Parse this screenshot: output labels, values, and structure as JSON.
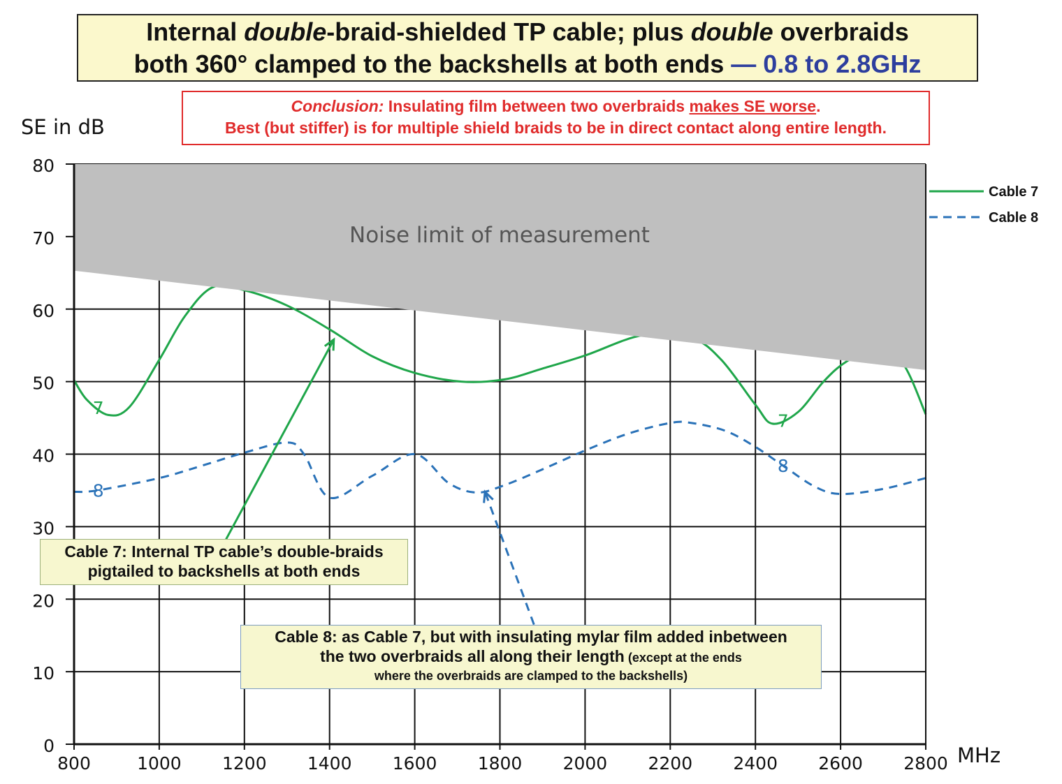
{
  "title": {
    "line1_a": "Internal ",
    "line1_b": "double",
    "line1_c": "-braid-shielded  TP cable; plus ",
    "line1_d": "double",
    "line1_e": "  overbraids",
    "line2_a": "both 360° clamped to the backshells at both ends ",
    "line2_b": "— 0.8 to 2.8GHz"
  },
  "conclusion": {
    "label": "Conclusion:",
    "text1": " Insulating film between two overbraids ",
    "text1_u": "makes SE worse",
    "text1_end": ".",
    "text2": "Best (but stiffer) is for multiple shield braids to be in direct contact along entire length."
  },
  "notes": {
    "cable7_line1": "Cable 7: Internal TP cable’s double-braids",
    "cable7_line2": "pigtailed to backshells at both ends",
    "cable8_line1": "Cable 8: as Cable 7, but with insulating mylar film added inbetween",
    "cable8_line2": "the two overbraids all along their length",
    "cable8_line2_small": "  (except at the ends",
    "cable8_line3": "where the overbraids are clamped to the backshells)"
  },
  "colors": {
    "cable7": "#1fa64a",
    "cable8": "#2a72b8",
    "noise": "#bfbfbf",
    "conclusion": "#e02b2b",
    "title_accent": "#2d3e9e"
  },
  "chart_data": {
    "type": "line",
    "title": "Internal double-braid-shielded TP cable; plus double overbraids both 360° clamped to the backshells at both ends — 0.8 to 2.8GHz",
    "xlabel": "MHz",
    "ylabel": "SE in dB",
    "xlim": [
      800,
      2800
    ],
    "ylim": [
      0,
      80
    ],
    "xticks": [
      "800",
      "1000",
      "1200",
      "1400",
      "1600",
      "1800",
      "2000",
      "2200",
      "2400",
      "2600",
      "2800"
    ],
    "yticks": [
      "0",
      "10",
      "20",
      "30",
      "40",
      "50",
      "60",
      "70",
      "80"
    ],
    "grid": true,
    "legend_position": "top-right",
    "noise_limit": {
      "label": "Noise limit of measurement",
      "x": [
        800,
        2800
      ],
      "y": [
        65.3,
        51.6
      ]
    },
    "series": [
      {
        "name": "Cable 7",
        "marker_label": "7",
        "style": "solid",
        "x": [
          800,
          830,
          880,
          930,
          1000,
          1060,
          1125,
          1200,
          1300,
          1400,
          1500,
          1600,
          1710,
          1810,
          1900,
          2000,
          2135,
          2250,
          2320,
          2400,
          2440,
          2500,
          2560,
          2612,
          2680,
          2745,
          2800
        ],
        "y": [
          50.2,
          47.5,
          45.4,
          46.5,
          53,
          59,
          63,
          62.6,
          60.5,
          57.2,
          53.5,
          51.2,
          50,
          50.3,
          51.8,
          53.6,
          56.4,
          56,
          53,
          46.8,
          44.2,
          45.8,
          50,
          52.7,
          54.5,
          52.6,
          45.5
        ],
        "labels_at": [
          {
            "x": 857,
            "y": 46.4
          },
          {
            "x": 2465,
            "y": 44.6
          }
        ]
      },
      {
        "name": "Cable 8",
        "marker_label": "8",
        "style": "dashed",
        "x": [
          800,
          855,
          1000,
          1100,
          1200,
          1300,
          1340,
          1400,
          1500,
          1600,
          1680,
          1745,
          1810,
          1900,
          2000,
          2100,
          2200,
          2250,
          2330,
          2400,
          2470,
          2540,
          2600,
          2700,
          2800
        ],
        "y": [
          34.8,
          35,
          36.7,
          38.4,
          40.2,
          41.6,
          40,
          34,
          37,
          40,
          36,
          34.7,
          35.7,
          37.9,
          40.5,
          42.8,
          44.3,
          44.3,
          43.2,
          41,
          38.2,
          35.5,
          34.5,
          35.2,
          36.7
        ],
        "labels_at": [
          {
            "x": 857,
            "y": 35
          },
          {
            "x": 2465,
            "y": 38.4
          }
        ]
      }
    ],
    "annotations": [
      {
        "text": "Cable 7 note",
        "arrow_from": [
          1150,
          27.5
        ],
        "arrow_to": [
          1410,
          55.8
        ],
        "series": "Cable 7"
      },
      {
        "text": "Cable 8 note",
        "arrow_from": [
          1880,
          16.5
        ],
        "arrow_to": [
          1765,
          34.8
        ],
        "series": "Cable 8"
      }
    ]
  }
}
